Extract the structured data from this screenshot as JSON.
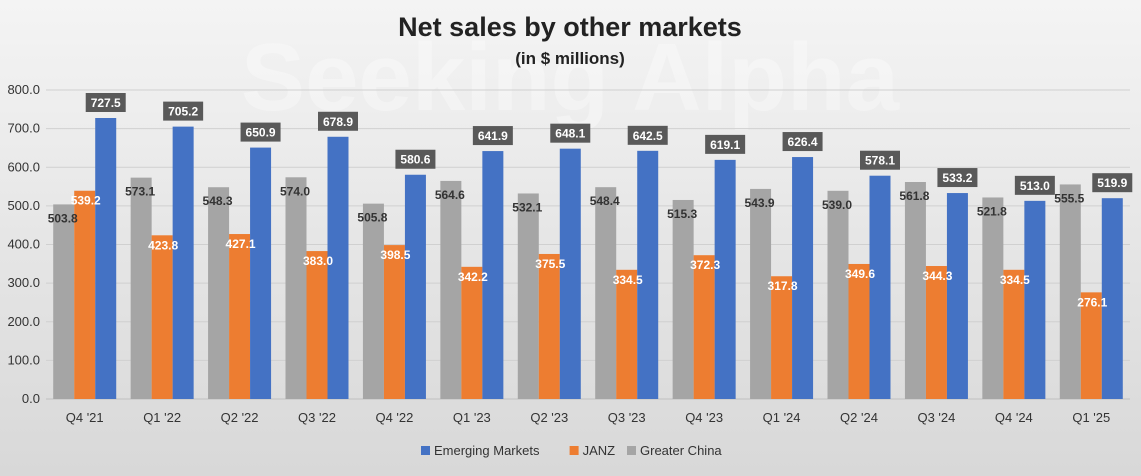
{
  "chart_data": {
    "type": "bar",
    "title": "Net sales by other markets",
    "subtitle": "(in $ millions)",
    "watermark": "Seeking Alpha",
    "xlabel": "",
    "ylabel": "",
    "ylim": [
      0,
      800
    ],
    "yticks": [
      "0.0",
      "100.0",
      "200.0",
      "300.0",
      "400.0",
      "500.0",
      "600.0",
      "700.0",
      "800.0"
    ],
    "grid": true,
    "legend": "bottom",
    "categories": [
      "Q4 '21",
      "Q1 '22",
      "Q2 '22",
      "Q3 '22",
      "Q4 '22",
      "Q1 '23",
      "Q2 '23",
      "Q3 '23",
      "Q4 '23",
      "Q1 '24",
      "Q2 '24",
      "Q3 '24",
      "Q4 '24",
      "Q1 '25"
    ],
    "series": [
      {
        "name": "Greater China",
        "color": "#a5a5a5",
        "values": [
          503.8,
          573.1,
          548.3,
          574.0,
          505.8,
          564.6,
          532.1,
          548.4,
          515.3,
          543.9,
          539.0,
          561.8,
          521.8,
          555.5
        ],
        "labels": [
          "503.8",
          "573.1",
          "548.3",
          "574.0",
          "505.8",
          "564.6",
          "532.1",
          "548.4",
          "515.3",
          "543.9",
          "539.0",
          "561.8",
          "521.8",
          "555.5"
        ]
      },
      {
        "name": "JANZ",
        "color": "#ed7d31",
        "values": [
          539.2,
          423.8,
          427.1,
          383.0,
          398.5,
          342.2,
          375.5,
          334.5,
          372.3,
          317.8,
          349.6,
          344.3,
          334.5,
          276.1
        ],
        "labels": [
          "539.2",
          "423.8",
          "427.1",
          "383.0",
          "398.5",
          "342.2",
          "375.5",
          "334.5",
          "372.3",
          "317.8",
          "349.6",
          "344.3",
          "334.5",
          "276.1"
        ]
      },
      {
        "name": "Emerging Markets",
        "color": "#4472c4",
        "values": [
          727.5,
          705.2,
          650.9,
          678.9,
          580.6,
          641.9,
          648.1,
          642.5,
          619.1,
          626.4,
          578.1,
          533.2,
          513.0,
          519.9
        ],
        "labels": [
          "727.5",
          "705.2",
          "650.9",
          "678.9",
          "580.6",
          "641.9",
          "648.1",
          "642.5",
          "619.1",
          "626.4",
          "578.1",
          "533.2",
          "513.0",
          "519.9"
        ]
      }
    ],
    "legend_order": [
      "Emerging Markets",
      "JANZ",
      "Greater China"
    ],
    "label_box_color": "#595959"
  }
}
